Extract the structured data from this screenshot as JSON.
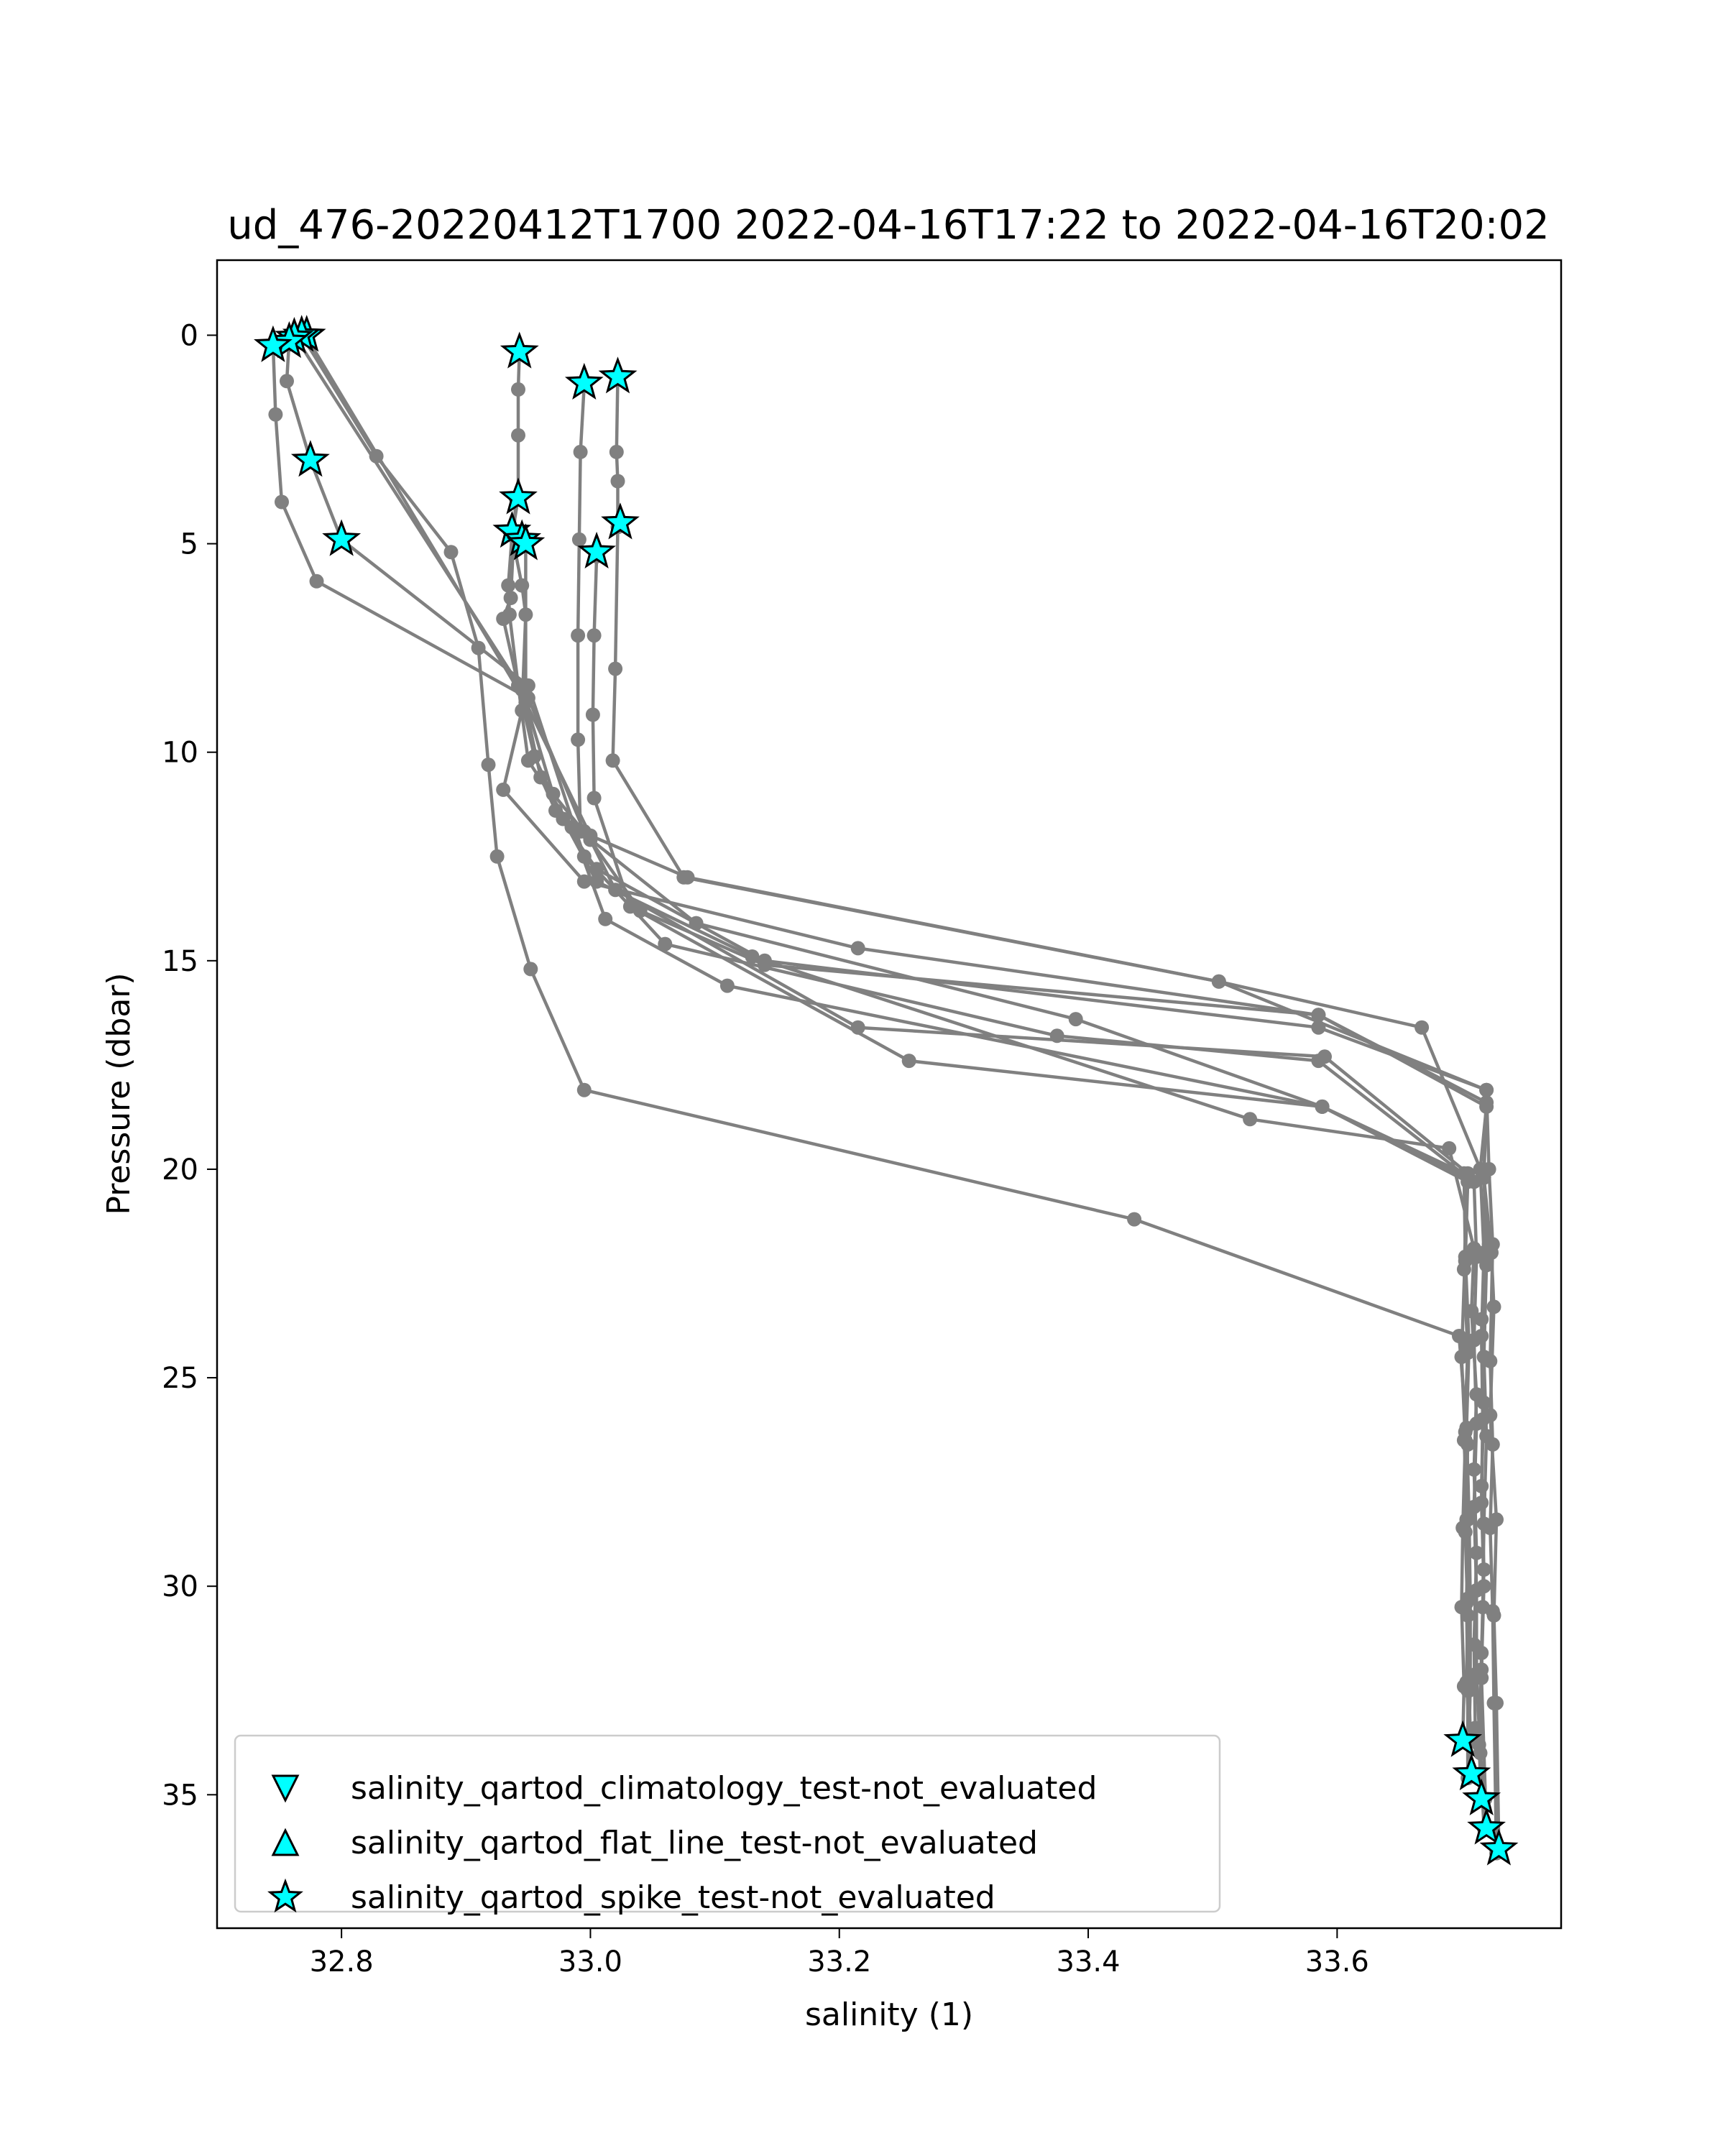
{
  "chart_data": {
    "type": "line",
    "title": "ud_476-20220412T1700 2022-04-16T17:22 to 2022-04-16T20:02",
    "xlabel": "salinity (1)",
    "ylabel": "Pressure (dbar)",
    "xlim": [
      32.7,
      33.78
    ],
    "ylim": [
      38.2,
      -1.8
    ],
    "y_inverted": true,
    "grid": false,
    "legend_position": "bottom-left",
    "x_ticks": [
      32.8,
      33.0,
      33.2,
      33.4,
      33.6
    ],
    "x_tick_labels": [
      "32.8",
      "33.0",
      "33.2",
      "33.4",
      "33.6"
    ],
    "y_ticks": [
      0,
      5,
      10,
      15,
      20,
      25,
      30,
      35
    ],
    "y_tick_labels": [
      "0",
      "5",
      "10",
      "15",
      "20",
      "25",
      "30",
      "35"
    ],
    "line_color": "#808080",
    "marker_color": "#00ffff",
    "profiles": [
      {
        "points": [
          [
            32.745,
            0.2
          ],
          [
            32.747,
            1.9
          ],
          [
            32.752,
            4.0
          ],
          [
            32.78,
            5.9
          ],
          [
            32.95,
            8.7
          ],
          [
            32.995,
            11.9
          ],
          [
            33.04,
            13.8
          ],
          [
            33.14,
            15.1
          ],
          [
            33.585,
            16.3
          ],
          [
            33.72,
            18.5
          ],
          [
            33.715,
            20.0
          ],
          [
            33.718,
            22.0
          ],
          [
            33.716,
            24.0
          ],
          [
            33.717,
            26.0
          ],
          [
            33.716,
            28.0
          ],
          [
            33.718,
            30.0
          ],
          [
            33.716,
            32.0
          ],
          [
            33.715,
            34.0
          ],
          [
            33.719,
            35.1
          ]
        ]
      },
      {
        "points": [
          [
            32.758,
            0.1
          ],
          [
            32.756,
            1.1
          ],
          [
            32.775,
            3.0
          ],
          [
            32.8,
            4.9
          ],
          [
            32.95,
            8.4
          ],
          [
            32.995,
            12.5
          ],
          [
            33.06,
            14.6
          ],
          [
            33.375,
            16.8
          ],
          [
            33.585,
            17.4
          ],
          [
            33.705,
            20.2
          ],
          [
            33.7,
            24.5
          ],
          [
            33.703,
            26.5
          ],
          [
            33.701,
            28.6
          ],
          [
            33.7,
            30.5
          ],
          [
            33.702,
            32.4
          ],
          [
            33.701,
            33.7
          ]
        ]
      },
      {
        "points": [
          [
            32.768,
            0.0
          ],
          [
            32.828,
            2.9
          ],
          [
            32.888,
            5.2
          ],
          [
            32.91,
            7.5
          ],
          [
            32.918,
            10.3
          ],
          [
            32.925,
            12.5
          ],
          [
            32.952,
            15.2
          ],
          [
            32.995,
            18.1
          ],
          [
            33.437,
            21.2
          ],
          [
            33.698,
            24.0
          ],
          [
            33.705,
            26.6
          ],
          [
            33.703,
            28.7
          ],
          [
            33.705,
            30.7
          ],
          [
            33.706,
            32.5
          ],
          [
            33.708,
            34.5
          ]
        ]
      },
      {
        "points": [
          [
            32.762,
            0.0
          ],
          [
            32.945,
            8.5
          ],
          [
            32.96,
            10.6
          ],
          [
            32.972,
            11.4
          ],
          [
            33.005,
            12.8
          ],
          [
            33.14,
            15.0
          ],
          [
            33.585,
            16.6
          ],
          [
            33.72,
            18.1
          ],
          [
            33.718,
            20.1
          ],
          [
            33.72,
            22.3
          ],
          [
            33.718,
            24.5
          ],
          [
            33.72,
            26.4
          ],
          [
            33.718,
            28.5
          ],
          [
            33.717,
            30.5
          ],
          [
            33.716,
            32.2
          ],
          [
            33.72,
            35.8
          ]
        ]
      },
      {
        "points": [
          [
            32.772,
            0.05
          ],
          [
            32.948,
            8.8
          ],
          [
            33.0,
            12.0
          ],
          [
            33.078,
            13.0
          ],
          [
            33.505,
            15.5
          ],
          [
            33.668,
            16.6
          ],
          [
            33.718,
            20.2
          ],
          [
            33.724,
            22.0
          ],
          [
            33.726,
            23.3
          ],
          [
            33.723,
            25.9
          ],
          [
            33.728,
            28.4
          ],
          [
            33.726,
            30.7
          ],
          [
            33.728,
            32.8
          ],
          [
            33.73,
            36.3
          ]
        ]
      },
      {
        "points": [
          [
            32.943,
            0.4
          ],
          [
            32.942,
            1.3
          ],
          [
            32.942,
            2.4
          ],
          [
            32.942,
            3.9
          ],
          [
            32.937,
            4.8
          ],
          [
            32.934,
            6.0
          ],
          [
            32.935,
            6.7
          ],
          [
            32.942,
            8.4
          ],
          [
            32.955,
            10.1
          ],
          [
            32.978,
            11.6
          ],
          [
            33.005,
            13.1
          ],
          [
            33.13,
            14.9
          ],
          [
            33.53,
            18.8
          ],
          [
            33.69,
            19.5
          ],
          [
            33.71,
            21.9
          ],
          [
            33.708,
            23.4
          ],
          [
            33.712,
            25.4
          ],
          [
            33.71,
            27.2
          ],
          [
            33.712,
            29.2
          ],
          [
            33.71,
            31.4
          ],
          [
            33.711,
            33.4
          ]
        ]
      },
      {
        "points": [
          [
            32.94,
            3.9
          ],
          [
            32.936,
            6.3
          ],
          [
            32.93,
            6.8
          ],
          [
            32.942,
            8.4
          ],
          [
            32.95,
            10.2
          ],
          [
            32.985,
            11.8
          ],
          [
            33.012,
            14.0
          ],
          [
            33.11,
            15.6
          ],
          [
            33.588,
            18.5
          ],
          [
            33.702,
            20.1
          ],
          [
            33.703,
            22.1
          ],
          [
            33.706,
            24.2
          ],
          [
            33.704,
            26.2
          ],
          [
            33.706,
            28.3
          ],
          [
            33.707,
            30.3
          ],
          [
            33.707,
            32.4
          ],
          [
            33.706,
            33.7
          ]
        ]
      },
      {
        "points": [
          [
            32.937,
            4.8
          ],
          [
            32.945,
            6.0
          ],
          [
            32.948,
            6.7
          ],
          [
            32.945,
            9.0
          ],
          [
            32.93,
            10.9
          ],
          [
            32.995,
            13.1
          ],
          [
            33.215,
            14.7
          ],
          [
            33.585,
            16.3
          ],
          [
            33.72,
            18.4
          ],
          [
            33.718,
            20.2
          ],
          [
            33.722,
            21.8
          ],
          [
            33.716,
            23.6
          ],
          [
            33.718,
            25.6
          ],
          [
            33.716,
            27.6
          ],
          [
            33.718,
            29.6
          ],
          [
            33.716,
            31.6
          ],
          [
            33.714,
            33.8
          ],
          [
            33.716,
            35.1
          ]
        ]
      },
      {
        "points": [
          [
            32.948,
            5.0
          ],
          [
            32.948,
            8.8
          ],
          [
            32.97,
            11.0
          ],
          [
            33.0,
            12.1
          ],
          [
            33.02,
            13.3
          ],
          [
            33.215,
            16.6
          ],
          [
            33.59,
            17.3
          ],
          [
            33.705,
            20.1
          ],
          [
            33.702,
            22.4
          ],
          [
            33.705,
            24.4
          ],
          [
            33.702,
            26.5
          ],
          [
            33.705,
            28.4
          ],
          [
            33.704,
            30.4
          ],
          [
            33.705,
            32.5
          ],
          [
            33.705,
            34.6
          ]
        ]
      },
      {
        "points": [
          [
            32.995,
            1.2
          ],
          [
            32.992,
            2.8
          ],
          [
            32.991,
            4.9
          ],
          [
            32.99,
            7.2
          ],
          [
            32.99,
            9.7
          ],
          [
            32.992,
            11.9
          ],
          [
            33.085,
            14.1
          ],
          [
            33.39,
            16.4
          ],
          [
            33.588,
            18.5
          ],
          [
            33.705,
            20.3
          ],
          [
            33.703,
            22.2
          ],
          [
            33.705,
            24.2
          ],
          [
            33.703,
            26.3
          ],
          [
            33.704,
            28.4
          ],
          [
            33.705,
            30.3
          ],
          [
            33.704,
            32.3
          ],
          [
            33.708,
            34.5
          ]
        ]
      },
      {
        "points": [
          [
            33.005,
            5.3
          ],
          [
            33.003,
            7.2
          ],
          [
            33.002,
            9.1
          ],
          [
            33.003,
            11.1
          ],
          [
            33.032,
            13.7
          ],
          [
            33.256,
            17.4
          ],
          [
            33.588,
            18.5
          ],
          [
            33.71,
            20.3
          ],
          [
            33.712,
            22.1
          ],
          [
            33.71,
            24.1
          ],
          [
            33.712,
            26.1
          ],
          [
            33.71,
            28.1
          ],
          [
            33.712,
            30.1
          ],
          [
            33.712,
            32.1
          ],
          [
            33.718,
            35.8
          ]
        ]
      },
      {
        "points": [
          [
            33.022,
            1.0
          ],
          [
            33.021,
            2.8
          ],
          [
            33.022,
            3.5
          ],
          [
            33.022,
            4.6
          ],
          [
            33.02,
            8.0
          ],
          [
            33.018,
            10.2
          ],
          [
            33.075,
            13.0
          ],
          [
            33.505,
            15.5
          ],
          [
            33.72,
            18.1
          ],
          [
            33.722,
            20.0
          ],
          [
            33.725,
            21.8
          ],
          [
            33.723,
            24.6
          ],
          [
            33.725,
            26.6
          ],
          [
            33.723,
            28.6
          ],
          [
            33.725,
            30.6
          ],
          [
            33.726,
            32.8
          ],
          [
            33.728,
            36.4
          ]
        ]
      }
    ],
    "spike_flags": [
      [
        32.772,
        0.0
      ],
      [
        32.768,
        0.0
      ],
      [
        32.762,
        0.05
      ],
      [
        32.758,
        0.15
      ],
      [
        32.745,
        0.25
      ],
      [
        32.775,
        3.0
      ],
      [
        32.8,
        4.9
      ],
      [
        32.943,
        0.4
      ],
      [
        32.942,
        3.9
      ],
      [
        32.937,
        4.7
      ],
      [
        32.945,
        4.9
      ],
      [
        32.948,
        5.0
      ],
      [
        32.995,
        1.15
      ],
      [
        33.022,
        1.0
      ],
      [
        33.005,
        5.2
      ],
      [
        33.024,
        4.5
      ],
      [
        33.701,
        33.7
      ],
      [
        33.708,
        34.5
      ],
      [
        33.716,
        35.1
      ],
      [
        33.72,
        35.8
      ],
      [
        33.73,
        36.3
      ]
    ],
    "legend": [
      {
        "label": "salinity_qartod_climatology_test-not_evaluated",
        "marker": "triangle-down"
      },
      {
        "label": "salinity_qartod_flat_line_test-not_evaluated",
        "marker": "triangle-up"
      },
      {
        "label": "salinity_qartod_spike_test-not_evaluated",
        "marker": "star"
      }
    ]
  }
}
